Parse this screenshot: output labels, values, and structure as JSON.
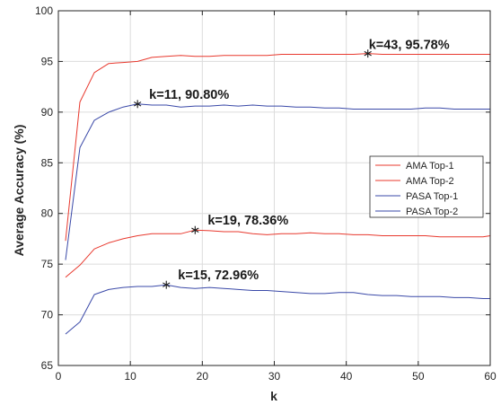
{
  "chart_data": {
    "type": "line",
    "xlabel": "k",
    "ylabel": "Average Accuracy (%)",
    "xlim": [
      0,
      60
    ],
    "ylim": [
      65,
      100
    ],
    "xticks": [
      0,
      10,
      20,
      30,
      40,
      50,
      60
    ],
    "yticks": [
      65,
      70,
      75,
      80,
      85,
      90,
      95,
      100
    ],
    "grid": true,
    "legend_position": "right",
    "x": [
      1,
      3,
      5,
      7,
      9,
      11,
      13,
      15,
      17,
      19,
      21,
      23,
      25,
      27,
      29,
      31,
      33,
      35,
      37,
      39,
      41,
      43,
      45,
      47,
      49,
      51,
      53,
      55,
      57,
      59,
      60
    ],
    "series": [
      {
        "name": "AMA Top-1",
        "color": "#e8392e",
        "values": [
          73.7,
          74.9,
          76.5,
          77.1,
          77.5,
          77.8,
          78.0,
          78.0,
          78.0,
          78.36,
          78.3,
          78.2,
          78.2,
          78.0,
          77.9,
          78.0,
          78.0,
          78.1,
          78.0,
          78.0,
          77.9,
          77.9,
          77.8,
          77.8,
          77.8,
          77.8,
          77.7,
          77.7,
          77.7,
          77.7,
          77.8
        ]
      },
      {
        "name": "AMA Top-2",
        "color": "#e8392e",
        "values": [
          77.3,
          91.0,
          93.9,
          94.8,
          94.9,
          95.0,
          95.4,
          95.5,
          95.6,
          95.5,
          95.5,
          95.6,
          95.6,
          95.6,
          95.6,
          95.7,
          95.7,
          95.7,
          95.7,
          95.7,
          95.7,
          95.78,
          95.7,
          95.7,
          95.7,
          95.7,
          95.7,
          95.7,
          95.7,
          95.7,
          95.7
        ]
      },
      {
        "name": "PASA Top-1",
        "color": "#3a49a8",
        "values": [
          68.1,
          69.3,
          72.0,
          72.5,
          72.7,
          72.8,
          72.8,
          72.96,
          72.7,
          72.6,
          72.7,
          72.6,
          72.5,
          72.4,
          72.4,
          72.3,
          72.2,
          72.1,
          72.1,
          72.2,
          72.2,
          72.0,
          71.9,
          71.9,
          71.8,
          71.8,
          71.8,
          71.7,
          71.7,
          71.6,
          71.6
        ]
      },
      {
        "name": "PASA Top-2",
        "color": "#3a49a8",
        "values": [
          75.4,
          86.5,
          89.2,
          90.0,
          90.5,
          90.8,
          90.7,
          90.7,
          90.5,
          90.6,
          90.6,
          90.7,
          90.6,
          90.7,
          90.6,
          90.6,
          90.5,
          90.5,
          90.4,
          90.4,
          90.3,
          90.3,
          90.3,
          90.3,
          90.3,
          90.4,
          90.4,
          90.3,
          90.3,
          90.3,
          90.3
        ]
      }
    ],
    "annotations": [
      {
        "x": 43,
        "y": 95.78,
        "label": "k=43, 95.78%"
      },
      {
        "x": 11,
        "y": 90.8,
        "label": "k=11, 90.80%"
      },
      {
        "x": 19,
        "y": 78.36,
        "label": "k=19, 78.36%"
      },
      {
        "x": 15,
        "y": 72.96,
        "label": "k=15, 72.96%"
      }
    ]
  }
}
